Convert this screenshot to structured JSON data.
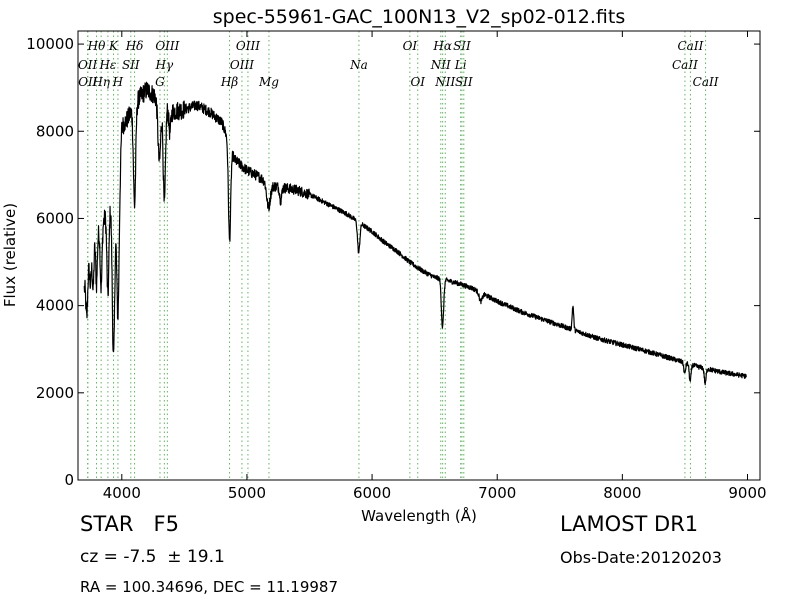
{
  "chart_data": {
    "type": "line",
    "title": "spec-55961-GAC_100N13_V2_sp02-012.fits",
    "xlabel": "Wavelength (Å)",
    "ylabel": "Flux (relative)",
    "xlim": [
      3650,
      9100
    ],
    "ylim": [
      0,
      10300
    ],
    "xticks": [
      4000,
      5000,
      6000,
      7000,
      8000,
      9000
    ],
    "yticks": [
      0,
      2000,
      4000,
      6000,
      8000,
      10000
    ],
    "grid": false,
    "series": [
      {
        "color": "#000000",
        "continuum": [
          [
            3700,
            4400
          ],
          [
            3750,
            5200
          ],
          [
            3800,
            5600
          ],
          [
            3850,
            5900
          ],
          [
            3900,
            6300
          ],
          [
            3950,
            6900
          ],
          [
            3990,
            7500
          ],
          [
            4000,
            8100
          ],
          [
            4050,
            8300
          ],
          [
            4100,
            8600
          ],
          [
            4150,
            8800
          ],
          [
            4200,
            8950
          ],
          [
            4250,
            8850
          ],
          [
            4300,
            8700
          ],
          [
            4400,
            8450
          ],
          [
            4500,
            8500
          ],
          [
            4600,
            8600
          ],
          [
            4700,
            8450
          ],
          [
            4800,
            8200
          ],
          [
            4850,
            7800
          ],
          [
            4900,
            7350
          ],
          [
            5000,
            7100
          ],
          [
            5100,
            6950
          ],
          [
            5200,
            6750
          ],
          [
            5300,
            6700
          ],
          [
            5400,
            6650
          ],
          [
            5500,
            6550
          ],
          [
            5600,
            6400
          ],
          [
            5700,
            6250
          ],
          [
            5800,
            6100
          ],
          [
            5900,
            5900
          ],
          [
            6000,
            5700
          ],
          [
            6100,
            5450
          ],
          [
            6200,
            5250
          ],
          [
            6300,
            5000
          ],
          [
            6400,
            4800
          ],
          [
            6500,
            4650
          ],
          [
            6600,
            4580
          ],
          [
            6700,
            4500
          ],
          [
            6800,
            4400
          ],
          [
            6900,
            4250
          ],
          [
            7000,
            4100
          ],
          [
            7200,
            3850
          ],
          [
            7400,
            3650
          ],
          [
            7600,
            3450
          ],
          [
            7800,
            3250
          ],
          [
            8000,
            3100
          ],
          [
            8200,
            2950
          ],
          [
            8400,
            2780
          ],
          [
            8600,
            2600
          ],
          [
            8800,
            2470
          ],
          [
            8990,
            2380
          ]
        ],
        "absorption_features": [
          {
            "wavelength": 3720,
            "depth": 1000,
            "width": 7
          },
          {
            "wavelength": 3750,
            "depth": 700,
            "width": 7
          },
          {
            "wavelength": 3771,
            "depth": 1000,
            "width": 6
          },
          {
            "wavelength": 3798,
            "depth": 1100,
            "width": 6
          },
          {
            "wavelength": 3835,
            "depth": 1400,
            "width": 7
          },
          {
            "wavelength": 3889,
            "depth": 2000,
            "width": 8
          },
          {
            "wavelength": 3934,
            "depth": 3900,
            "width": 10
          },
          {
            "wavelength": 3969,
            "depth": 3400,
            "width": 10
          },
          {
            "wavelength": 4102,
            "depth": 2300,
            "width": 9
          },
          {
            "wavelength": 4300,
            "depth": 1400,
            "width": 11
          },
          {
            "wavelength": 4340,
            "depth": 2300,
            "width": 9
          },
          {
            "wavelength": 4384,
            "depth": 500,
            "width": 8
          },
          {
            "wavelength": 4861,
            "depth": 2200,
            "width": 9
          },
          {
            "wavelength": 5172,
            "depth": 550,
            "width": 14
          },
          {
            "wavelength": 5270,
            "depth": 300,
            "width": 8
          },
          {
            "wavelength": 5893,
            "depth": 700,
            "width": 9
          },
          {
            "wavelength": 6563,
            "depth": 1100,
            "width": 9
          },
          {
            "wavelength": 6868,
            "depth": 200,
            "width": 12
          },
          {
            "wavelength": 8498,
            "depth": 250,
            "width": 7
          },
          {
            "wavelength": 8542,
            "depth": 400,
            "width": 7
          },
          {
            "wavelength": 8662,
            "depth": 350,
            "width": 7
          }
        ],
        "emission_features": [
          {
            "wavelength": 7605,
            "height": 550,
            "width": 6
          }
        ]
      }
    ],
    "line_markers": [
      {
        "label": "OII",
        "wavelength": 3727,
        "row": 1
      },
      {
        "label": "OII",
        "wavelength": 3729,
        "row": 0
      },
      {
        "label": "Hθ",
        "wavelength": 3798,
        "row": 2
      },
      {
        "label": "Hη",
        "wavelength": 3835,
        "row": 0
      },
      {
        "label": "Hε",
        "wavelength": 3889,
        "row": 1
      },
      {
        "label": "K",
        "wavelength": 3934,
        "row": 2
      },
      {
        "label": "H",
        "wavelength": 3969,
        "row": 0
      },
      {
        "label": "SII",
        "wavelength": 4072,
        "row": 1
      },
      {
        "label": "Hδ",
        "wavelength": 4102,
        "row": 2
      },
      {
        "label": "G",
        "wavelength": 4305,
        "row": 0
      },
      {
        "label": "Hγ",
        "wavelength": 4340,
        "row": 1
      },
      {
        "label": "OIII",
        "wavelength": 4364,
        "row": 2
      },
      {
        "label": "Hβ",
        "wavelength": 4861,
        "row": 0
      },
      {
        "label": "OIII",
        "wavelength": 4960,
        "row": 1
      },
      {
        "label": "OIII",
        "wavelength": 5008,
        "row": 2
      },
      {
        "label": "Mg",
        "wavelength": 5176,
        "row": 0
      },
      {
        "label": "Na",
        "wavelength": 5895,
        "row": 1
      },
      {
        "label": "OI",
        "wavelength": 6302,
        "row": 2
      },
      {
        "label": "OI",
        "wavelength": 6365,
        "row": 0
      },
      {
        "label": "NII",
        "wavelength": 6549,
        "row": 1
      },
      {
        "label": "Hα",
        "wavelength": 6564,
        "row": 2
      },
      {
        "label": "NII",
        "wavelength": 6585,
        "row": 0
      },
      {
        "label": "Li",
        "wavelength": 6708,
        "row": 1
      },
      {
        "label": "SII",
        "wavelength": 6718,
        "row": 2
      },
      {
        "label": "SII",
        "wavelength": 6733,
        "row": 0
      },
      {
        "label": "CaII",
        "wavelength": 8500,
        "row": 1
      },
      {
        "label": "CaII",
        "wavelength": 8544,
        "row": 2
      },
      {
        "label": "CaII",
        "wavelength": 8665,
        "row": 0
      }
    ],
    "marker_color": "#5cb85c"
  },
  "object_info": {
    "class_label": "STAR   F5",
    "cz": "cz = -7.5  ± 19.1",
    "radec": "RA = 100.34696, DEC = 11.19987",
    "survey": "LAMOST DR1",
    "obs_date": "Obs-Date:20120203"
  }
}
